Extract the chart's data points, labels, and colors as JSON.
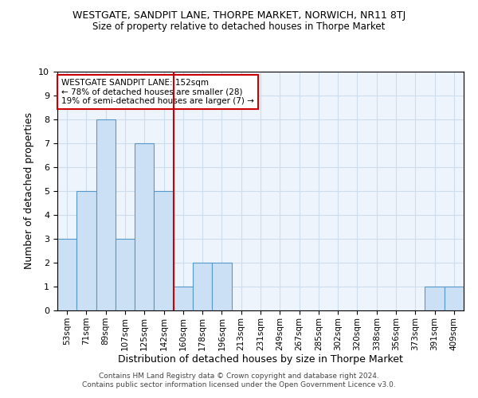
{
  "title": "WESTGATE, SANDPIT LANE, THORPE MARKET, NORWICH, NR11 8TJ",
  "subtitle": "Size of property relative to detached houses in Thorpe Market",
  "xlabel": "Distribution of detached houses by size in Thorpe Market",
  "ylabel": "Number of detached properties",
  "categories": [
    "53sqm",
    "71sqm",
    "89sqm",
    "107sqm",
    "125sqm",
    "142sqm",
    "160sqm",
    "178sqm",
    "196sqm",
    "213sqm",
    "231sqm",
    "249sqm",
    "267sqm",
    "285sqm",
    "302sqm",
    "320sqm",
    "338sqm",
    "356sqm",
    "373sqm",
    "391sqm",
    "409sqm"
  ],
  "values": [
    3,
    5,
    8,
    3,
    7,
    5,
    1,
    2,
    2,
    0,
    0,
    0,
    0,
    0,
    0,
    0,
    0,
    0,
    0,
    1,
    1
  ],
  "bar_color": "#cce0f5",
  "bar_edge_color": "#5599cc",
  "ylim": [
    0,
    10
  ],
  "yticks": [
    0,
    1,
    2,
    3,
    4,
    5,
    6,
    7,
    8,
    9,
    10
  ],
  "vline_x": 5.5,
  "vline_color": "#cc0000",
  "annotation_text": "WESTGATE SANDPIT LANE: 152sqm\n← 78% of detached houses are smaller (28)\n19% of semi-detached houses are larger (7) →",
  "annotation_box_color": "#ffffff",
  "annotation_box_edge": "#cc0000",
  "footer_text": "Contains HM Land Registry data © Crown copyright and database right 2024.\nContains public sector information licensed under the Open Government Licence v3.0.",
  "grid_color": "#ccddee",
  "background_color": "#eef4fb"
}
